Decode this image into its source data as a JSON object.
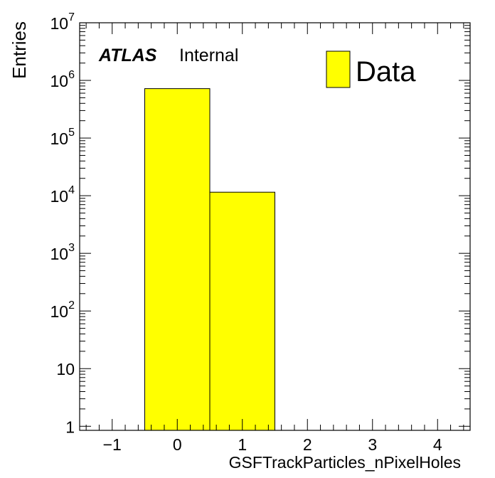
{
  "chart_data": {
    "type": "bar",
    "bins": [
      {
        "x_low": -0.5,
        "x_high": 0.5,
        "value": 720000
      },
      {
        "x_low": 0.5,
        "x_high": 1.5,
        "value": 11500
      }
    ],
    "series": [
      {
        "name": "Data",
        "color": "#ffff00",
        "values": [
          720000,
          11500
        ]
      }
    ],
    "xlabel": "GSFTrackParticles_nPixelHoles",
    "ylabel": "Entries",
    "xlim": [
      -1.5,
      4.5
    ],
    "ylim": [
      0.85,
      10000000
    ],
    "ylog": true,
    "x_ticks": [
      {
        "value": -1,
        "label": "−1"
      },
      {
        "value": 0,
        "label": "0"
      },
      {
        "value": 1,
        "label": "1"
      },
      {
        "value": 2,
        "label": "2"
      },
      {
        "value": 3,
        "label": "3"
      },
      {
        "value": 4,
        "label": "4"
      }
    ],
    "y_ticks": [
      {
        "value": 1,
        "base": "1",
        "exp": ""
      },
      {
        "value": 10,
        "base": "10",
        "exp": ""
      },
      {
        "value": 100,
        "base": "10",
        "exp": "2"
      },
      {
        "value": 1000,
        "base": "10",
        "exp": "3"
      },
      {
        "value": 10000,
        "base": "10",
        "exp": "4"
      },
      {
        "value": 100000,
        "base": "10",
        "exp": "5"
      },
      {
        "value": 1000000,
        "base": "10",
        "exp": "6"
      },
      {
        "value": 10000000,
        "base": "10",
        "exp": "7"
      }
    ],
    "atlas_label": "ATLAS",
    "atlas_status": "Internal",
    "legend": {
      "placement": "top-right",
      "entries": [
        {
          "label": "Data",
          "color": "#ffff00"
        }
      ]
    },
    "grid": false
  }
}
